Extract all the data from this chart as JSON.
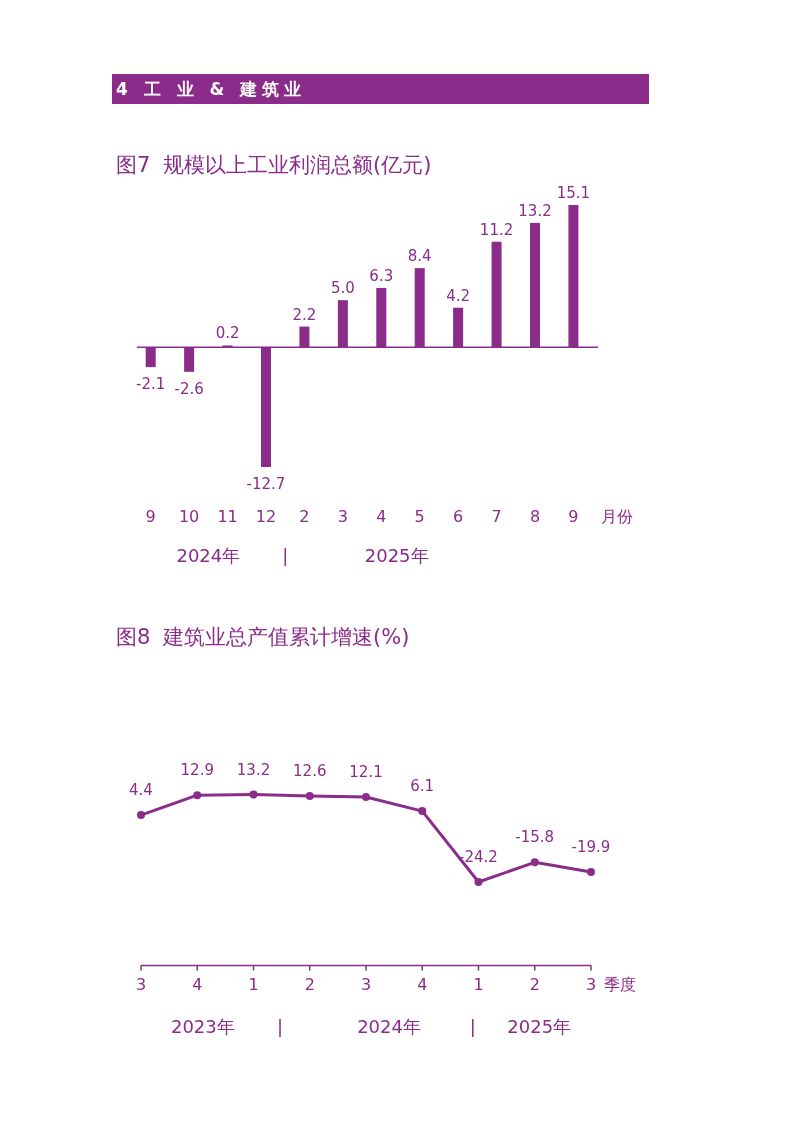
{
  "chart_data": [
    {
      "type": "other",
      "title": "4 工 业 & 建筑业"
    },
    {
      "type": "bar",
      "title": "图7 规模以上工业利润总额(亿元)",
      "xlabel": "月份",
      "categories": [
        "9",
        "10",
        "11",
        "12",
        "2",
        "3",
        "4",
        "5",
        "6",
        "7",
        "8",
        "9"
      ],
      "values": [
        -2.1,
        -2.6,
        0.2,
        -12.7,
        2.2,
        5.0,
        6.3,
        8.4,
        4.2,
        11.2,
        13.2,
        15.1
      ],
      "value_labels": [
        "-2.1",
        "-2.6",
        "0.2",
        "-12.7",
        "2.2",
        "5.0",
        "6.3",
        "8.4",
        "4.2",
        "11.2",
        "13.2",
        "15.1"
      ],
      "color": "#8b2c8a",
      "ref_lines": [
        {
          "axis": "y",
          "value": 0
        }
      ],
      "annotations": [
        "2024年",
        "|",
        "2025年"
      ]
    },
    {
      "type": "line",
      "title": "图8 建筑业总产值累计增速(%)",
      "xlabel": "季度",
      "categories": [
        "3",
        "4",
        "1",
        "2",
        "3",
        "4",
        "1",
        "2",
        "3"
      ],
      "values": [
        4.4,
        12.9,
        13.2,
        12.6,
        12.1,
        6.1,
        -24.2,
        -15.8,
        -19.9
      ],
      "color": "#8b2c8a",
      "marker": "circle",
      "data_labels": true,
      "annotations": [
        "2023年",
        "|",
        "2024年",
        "|",
        "2025年"
      ]
    }
  ]
}
